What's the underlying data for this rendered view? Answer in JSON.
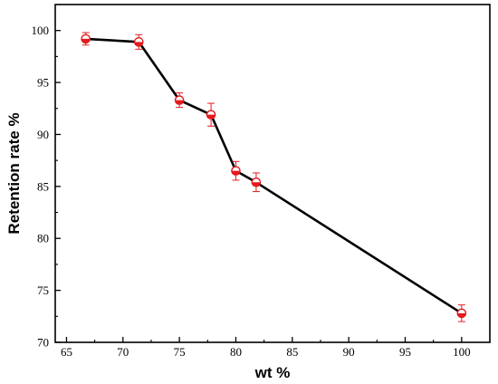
{
  "chart_data": {
    "type": "line",
    "title": "",
    "xlabel": "wt %",
    "ylabel": "Retention rate %",
    "xlim": [
      64,
      102.5
    ],
    "ylim": [
      70,
      102.5
    ],
    "x_ticks": [
      65,
      70,
      75,
      80,
      85,
      90,
      95,
      100
    ],
    "y_ticks": [
      70,
      75,
      80,
      85,
      90,
      95,
      100
    ],
    "grid": false,
    "legend": "none",
    "series": [
      {
        "x": [
          66.7,
          71.4,
          75.0,
          77.8,
          80.0,
          81.8,
          100.0
        ],
        "y": [
          99.2,
          98.9,
          93.3,
          91.9,
          86.5,
          85.4,
          72.8
        ],
        "error": [
          0.6,
          0.7,
          0.7,
          1.1,
          0.9,
          0.9,
          0.8
        ]
      }
    ],
    "colors": {
      "line": "#000000",
      "marker": "#e41a1c",
      "error_bar": "#e41a1c",
      "axis": "#000000"
    }
  }
}
